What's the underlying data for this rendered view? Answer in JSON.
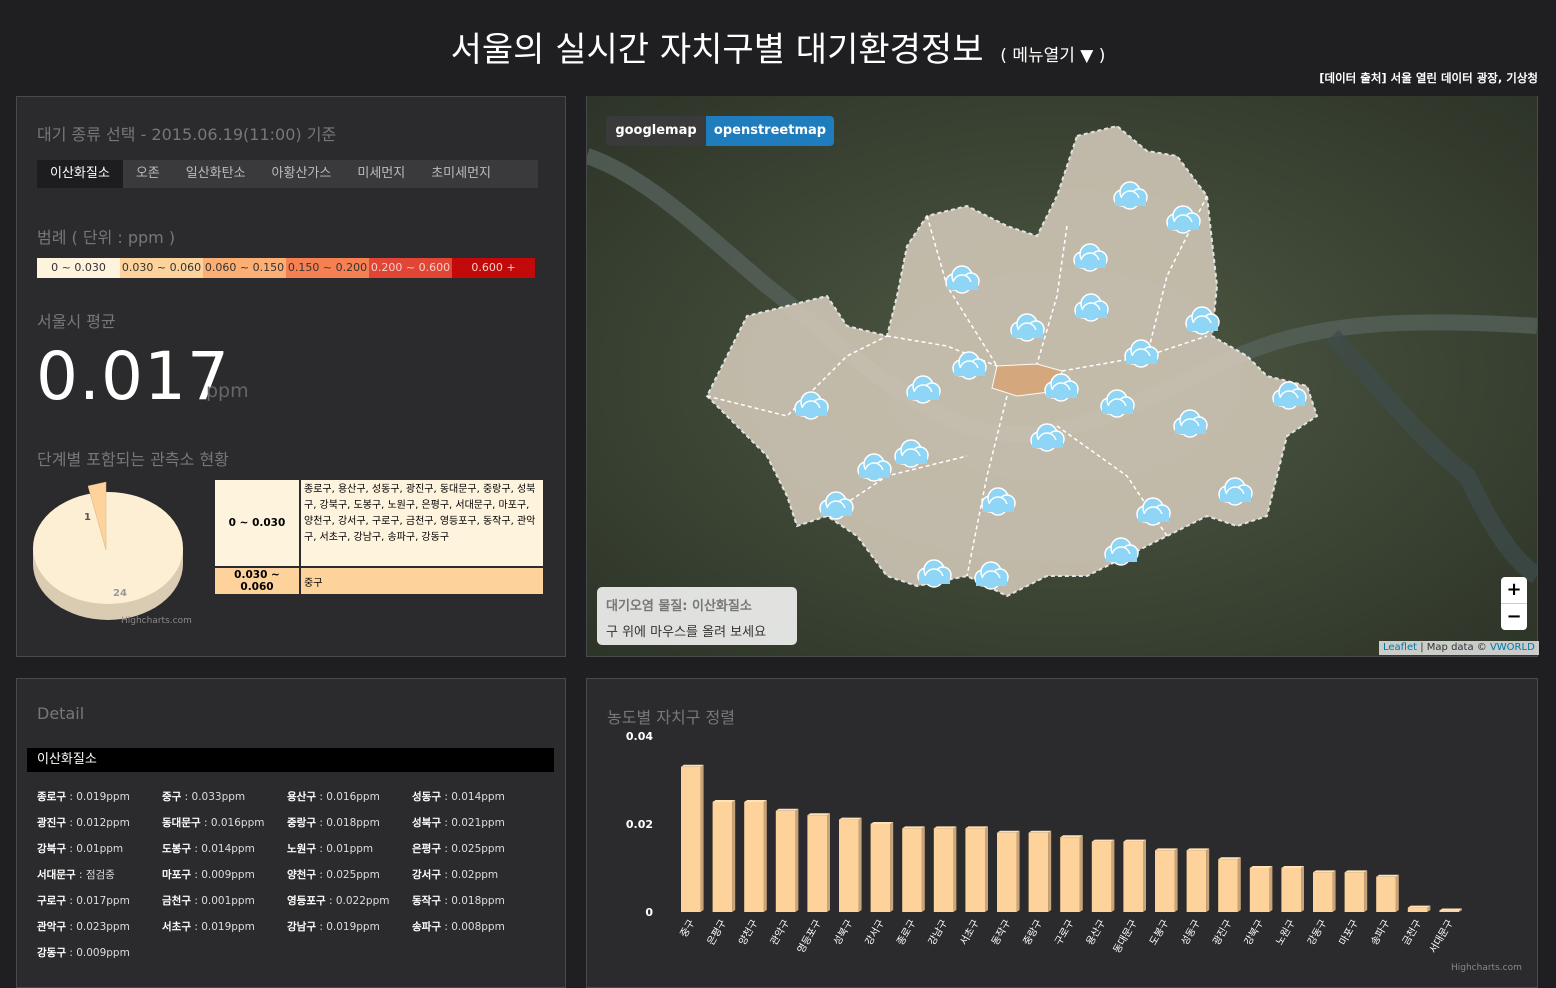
{
  "header": {
    "title": "서울의 실시간 자치구별 대기환경정보",
    "menu_label": "( 메뉴열기 ▼ )",
    "source": "[데이터 출처] 서울 열린 데이터 광장, 기상청"
  },
  "left_panel": {
    "title": "대기 종류 선택 - 2015.06.19(11:00) 기준",
    "tabs": [
      "이산화질소",
      "오존",
      "일산화탄소",
      "아황산가스",
      "미세먼지",
      "초미세먼지"
    ],
    "active_tab": "이산화질소",
    "legend_title": "범례 ( 단위 : ppm )",
    "legend": [
      {
        "label": "0 ~ 0.030",
        "color": "#fef3dd"
      },
      {
        "label": "0.030 ~ 0.060",
        "color": "#fdd39b"
      },
      {
        "label": "0.060 ~ 0.150",
        "color": "#fcaf74"
      },
      {
        "label": "0.150 ~ 0.200",
        "color": "#f78052"
      },
      {
        "label": "0.200 ~ 0.600",
        "color": "#e14535"
      },
      {
        "label": "0.600 +",
        "color": "#c20a0a"
      }
    ],
    "avg_title": "서울시 평균",
    "avg_value": "0.017",
    "avg_unit": "ppm",
    "status_title": "단계별 포함되는 관측소 현황",
    "pie": {
      "values": [
        24,
        1
      ],
      "labels": [
        "24",
        "1"
      ],
      "colors": [
        "#fdefd4",
        "#fdd39b"
      ]
    },
    "highcharts_credit": "Highcharts.com",
    "status_table": [
      {
        "range": "0 ~ 0.030",
        "districts": "종로구, 용산구, 성동구, 광진구, 동대문구, 중랑구, 성북구, 강북구, 도봉구, 노원구, 은평구, 서대문구, 마포구, 양천구, 강서구, 구로구, 금천구, 영등포구, 동작구, 관악구, 서초구, 강남구, 송파구, 강동구",
        "color": "#fef3dd"
      },
      {
        "range": "0.030 ~ 0.060",
        "districts": "중구",
        "color": "#fdd39b"
      }
    ]
  },
  "map": {
    "buttons": [
      "googlemap",
      "openstreetmap"
    ],
    "active_button": "openstreetmap",
    "info_title": "대기오염 물질: 이산화질소",
    "info_text": "구 위에 마우스를 올려 보세요",
    "zoom_in": "+",
    "zoom_out": "−",
    "attribution_link": "Leaflet",
    "attribution_text": " | Map data © ",
    "attribution_link2": "VWORLD",
    "icon": "cloud-icon"
  },
  "detail": {
    "title": "Detail",
    "header": "이산화질소",
    "items": [
      {
        "name": "종로구",
        "value": "0.019ppm"
      },
      {
        "name": "중구",
        "value": "0.033ppm"
      },
      {
        "name": "용산구",
        "value": "0.016ppm"
      },
      {
        "name": "성동구",
        "value": "0.014ppm"
      },
      {
        "name": "광진구",
        "value": "0.012ppm"
      },
      {
        "name": "동대문구",
        "value": "0.016ppm"
      },
      {
        "name": "중랑구",
        "value": "0.018ppm"
      },
      {
        "name": "성북구",
        "value": "0.021ppm"
      },
      {
        "name": "강북구",
        "value": "0.01ppm"
      },
      {
        "name": "도봉구",
        "value": "0.014ppm"
      },
      {
        "name": "노원구",
        "value": "0.01ppm"
      },
      {
        "name": "은평구",
        "value": "0.025ppm"
      },
      {
        "name": "서대문구",
        "value": "점검중"
      },
      {
        "name": "마포구",
        "value": "0.009ppm"
      },
      {
        "name": "양천구",
        "value": "0.025ppm"
      },
      {
        "name": "강서구",
        "value": "0.02ppm"
      },
      {
        "name": "구로구",
        "value": "0.017ppm"
      },
      {
        "name": "금천구",
        "value": "0.001ppm"
      },
      {
        "name": "영등포구",
        "value": "0.022ppm"
      },
      {
        "name": "동작구",
        "value": "0.018ppm"
      },
      {
        "name": "관악구",
        "value": "0.023ppm"
      },
      {
        "name": "서초구",
        "value": "0.019ppm"
      },
      {
        "name": "강남구",
        "value": "0.019ppm"
      },
      {
        "name": "송파구",
        "value": "0.008ppm"
      },
      {
        "name": "강동구",
        "value": "0.009ppm"
      }
    ]
  },
  "sort_panel": {
    "title": "농도별 자치구 정렬",
    "highcharts_credit": "Highcharts.com"
  },
  "chart_data": {
    "type": "bar",
    "title": "농도별 자치구 정렬",
    "categories": [
      "중구",
      "은평구",
      "양천구",
      "관악구",
      "영등포구",
      "성북구",
      "강서구",
      "종로구",
      "강남구",
      "서초구",
      "동작구",
      "중랑구",
      "구로구",
      "용산구",
      "동대문구",
      "도봉구",
      "성동구",
      "광진구",
      "강북구",
      "노원구",
      "강동구",
      "마포구",
      "송파구",
      "금천구",
      "서대문구"
    ],
    "values": [
      0.033,
      0.025,
      0.025,
      0.023,
      0.022,
      0.021,
      0.02,
      0.019,
      0.019,
      0.019,
      0.018,
      0.018,
      0.017,
      0.016,
      0.016,
      0.014,
      0.014,
      0.012,
      0.01,
      0.01,
      0.009,
      0.009,
      0.008,
      0.001,
      0
    ],
    "yticks": [
      "0",
      "0.02",
      "0.04"
    ],
    "ylim": [
      0,
      0.04
    ],
    "color": "#fdd39b"
  }
}
